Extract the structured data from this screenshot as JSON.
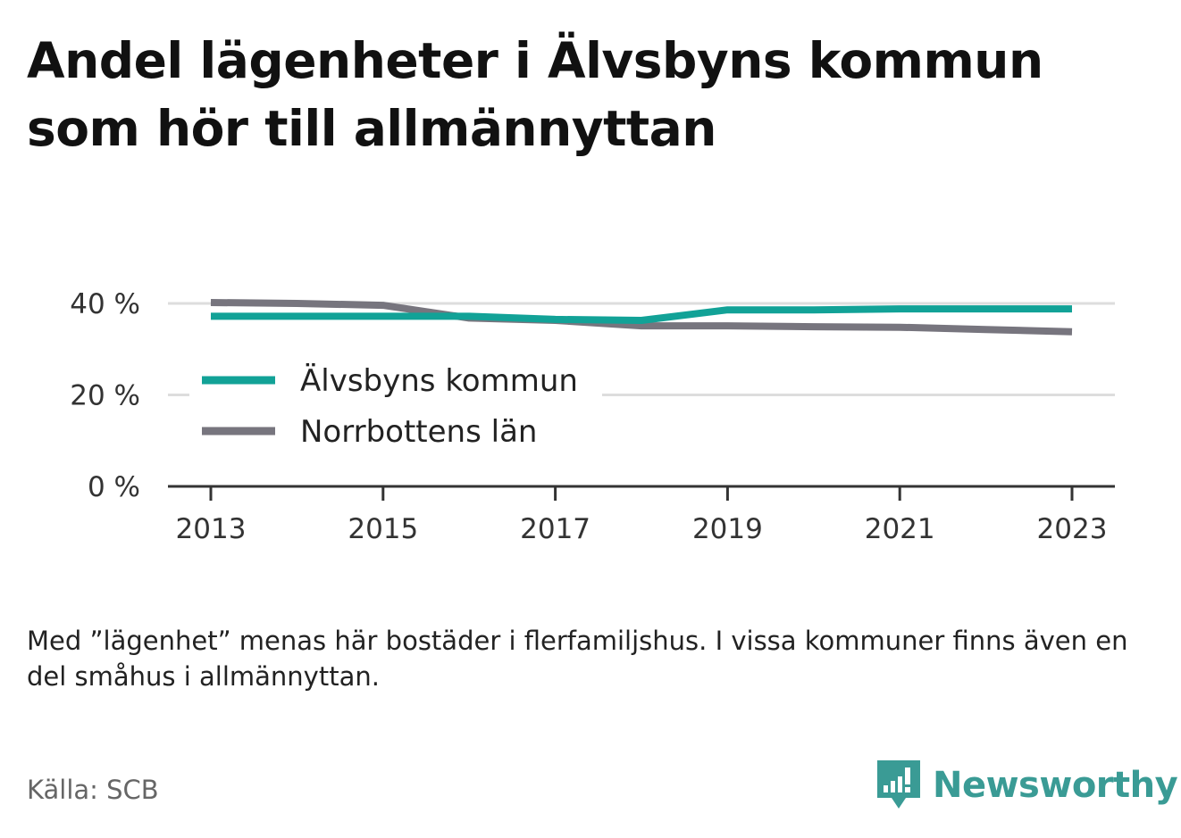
{
  "title": "Andel lägenheter i Älvsbyns kommun som hör till allmännyttan",
  "note": "Med ”lägenhet” menas här bostäder i flerfamiljshus. I vissa kommuner finns även en del småhus i allmännyttan.",
  "source": "Källa: SCB",
  "brand": {
    "name": "Newsworthy",
    "color": "#3a9b95"
  },
  "chart_data": {
    "type": "line",
    "x": [
      2013,
      2014,
      2015,
      2016,
      2017,
      2018,
      2019,
      2020,
      2021,
      2022,
      2023
    ],
    "x_ticks": [
      "2013",
      "2015",
      "2017",
      "2019",
      "2021",
      "2023"
    ],
    "y_ticks": [
      "0 %",
      "20 %",
      "40 %"
    ],
    "ylim": [
      0,
      40
    ],
    "grid": true,
    "legend_position": "left",
    "series": [
      {
        "name": "Älvsbyns kommun",
        "color": "#12a297",
        "values": [
          37.2,
          37.2,
          37.2,
          37.2,
          36.5,
          36.3,
          38.6,
          38.6,
          38.8,
          38.8,
          38.8
        ]
      },
      {
        "name": "Norrbottens län",
        "color": "#77757e",
        "values": [
          40.2,
          40.0,
          39.6,
          36.8,
          36.3,
          35.1,
          35.1,
          34.9,
          34.8,
          34.3,
          33.8
        ]
      }
    ]
  }
}
